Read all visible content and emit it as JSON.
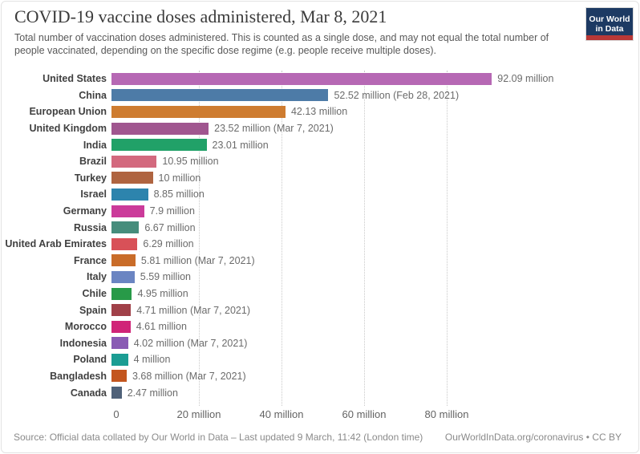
{
  "header": {
    "title": "COVID-19 vaccine doses administered, Mar 8, 2021",
    "subtitle": "Total number of vaccination doses administered. This is counted as a single dose, and may not equal the total number of people vaccinated, depending on the specific dose regime (e.g. people receive multiple doses).",
    "logo": {
      "line1": "Our World",
      "line2": "in Data",
      "bg_color": "#1d3a63",
      "stripe_color": "#b93837"
    }
  },
  "chart_data": {
    "type": "bar",
    "orientation": "horizontal",
    "title": "COVID-19 vaccine doses administered, Mar 8, 2021",
    "xlabel": "",
    "ylabel": "",
    "unit": "million doses",
    "xlim": [
      0,
      108
    ],
    "grid": "dotted-vertical",
    "axis_ticks": [
      {
        "value": 0,
        "label": "0"
      },
      {
        "value": 20,
        "label": "20 million"
      },
      {
        "value": 40,
        "label": "40 million"
      },
      {
        "value": 60,
        "label": "60 million"
      },
      {
        "value": 80,
        "label": "80 million"
      }
    ],
    "bars": [
      {
        "label": "United States",
        "value": 92.09,
        "value_label": "92.09 million",
        "color": "#b668b4"
      },
      {
        "label": "China",
        "value": 52.52,
        "value_label": "52.52 million (Feb 28, 2021)",
        "color": "#4d7ba7"
      },
      {
        "label": "European Union",
        "value": 42.13,
        "value_label": "42.13 million",
        "color": "#ce7c30"
      },
      {
        "label": "United Kingdom",
        "value": 23.52,
        "value_label": "23.52 million (Mar 7, 2021)",
        "color": "#a0568f"
      },
      {
        "label": "India",
        "value": 23.01,
        "value_label": "23.01 million",
        "color": "#21a168"
      },
      {
        "label": "Brazil",
        "value": 10.95,
        "value_label": "10.95 million",
        "color": "#d3697e"
      },
      {
        "label": "Turkey",
        "value": 10,
        "value_label": "10 million",
        "color": "#af6440"
      },
      {
        "label": "Israel",
        "value": 8.85,
        "value_label": "8.85 million",
        "color": "#2d84ad"
      },
      {
        "label": "Germany",
        "value": 7.9,
        "value_label": "7.9 million",
        "color": "#cb3b9a"
      },
      {
        "label": "Russia",
        "value": 6.67,
        "value_label": "6.67 million",
        "color": "#468d7c"
      },
      {
        "label": "United Arab Emirates",
        "value": 6.29,
        "value_label": "6.29 million",
        "color": "#d85158"
      },
      {
        "label": "France",
        "value": 5.81,
        "value_label": "5.81 million (Mar 7, 2021)",
        "color": "#c96c29"
      },
      {
        "label": "Italy",
        "value": 5.59,
        "value_label": "5.59 million",
        "color": "#6b85c2"
      },
      {
        "label": "Chile",
        "value": 4.95,
        "value_label": "4.95 million",
        "color": "#289a48"
      },
      {
        "label": "Spain",
        "value": 4.71,
        "value_label": "4.71 million (Mar 7, 2021)",
        "color": "#a04048"
      },
      {
        "label": "Morocco",
        "value": 4.61,
        "value_label": "4.61 million",
        "color": "#d02478"
      },
      {
        "label": "Indonesia",
        "value": 4.02,
        "value_label": "4.02 million (Mar 7, 2021)",
        "color": "#8a5bb4"
      },
      {
        "label": "Poland",
        "value": 4,
        "value_label": "4 million",
        "color": "#1b9d93"
      },
      {
        "label": "Bangladesh",
        "value": 3.68,
        "value_label": "3.68 million (Mar 7, 2021)",
        "color": "#c3561f"
      },
      {
        "label": "Canada",
        "value": 2.47,
        "value_label": "2.47 million",
        "color": "#4f6179"
      }
    ]
  },
  "footer": {
    "source": "Source: Official data collated by Our World in Data – Last updated 9 March, 11:42 (London time)",
    "link": "OurWorldInData.org/coronavirus",
    "separator": " • ",
    "license": "CC BY"
  }
}
